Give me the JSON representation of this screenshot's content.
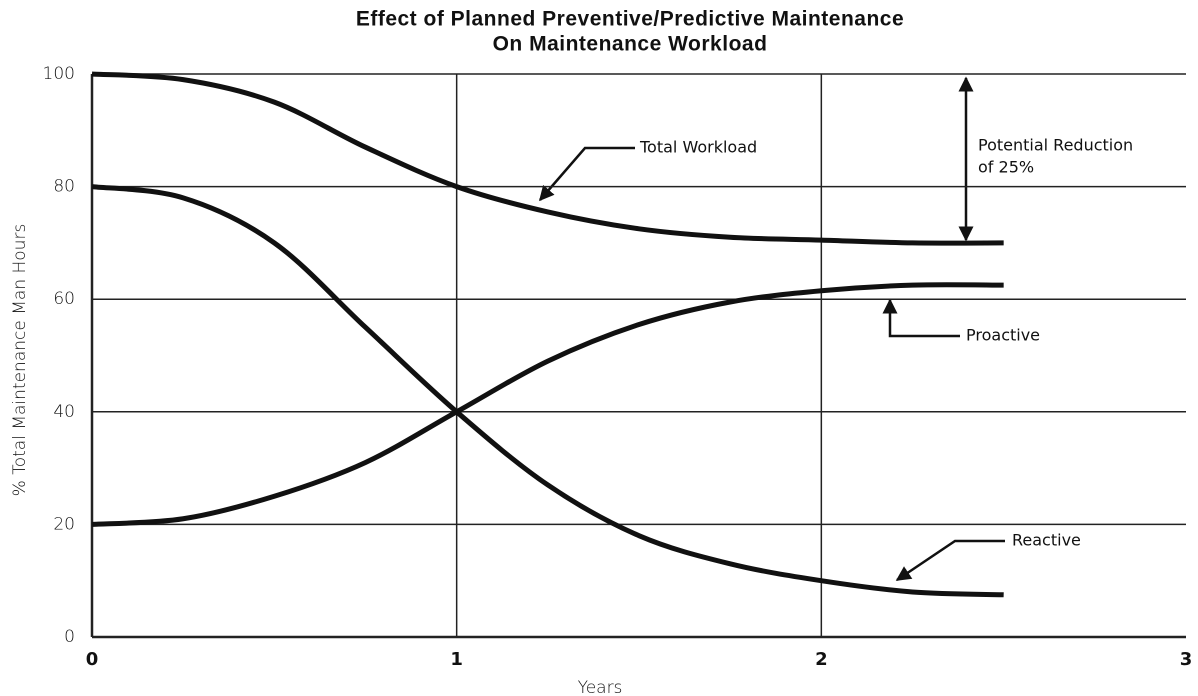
{
  "chart_data": {
    "type": "line",
    "title": [
      "Effect of Planned Preventive/Predictive Maintenance",
      "On Maintenance Workload"
    ],
    "x_label": "Years",
    "y_label": "% Total Maintenance Man Hours",
    "x": [
      0,
      0.25,
      0.5,
      0.75,
      1,
      1.25,
      1.5,
      1.75,
      2,
      2.25,
      2.5
    ],
    "series": [
      {
        "name": "Total Workload",
        "color": "#111111",
        "values": [
          100,
          99,
          95,
          87,
          80,
          75.5,
          72.5,
          71,
          70.5,
          70,
          70
        ]
      },
      {
        "name": "Proactive",
        "color": "#111111",
        "values": [
          20,
          21,
          25,
          31,
          40,
          49,
          55.5,
          59.5,
          61.5,
          62.5,
          62.5
        ]
      },
      {
        "name": "Reactive",
        "color": "#111111",
        "values": [
          80,
          78,
          70,
          55,
          40,
          27,
          18,
          13,
          10,
          8,
          7.5
        ]
      }
    ],
    "annotations": [
      "Potential Reduction",
      "of 25%"
    ],
    "xlim": [
      0,
      3
    ],
    "xticks": [
      0,
      1,
      2,
      3
    ],
    "ylim": [
      0,
      100
    ],
    "yticks": [
      0,
      20,
      40,
      60,
      80,
      100
    ],
    "grid": true
  }
}
